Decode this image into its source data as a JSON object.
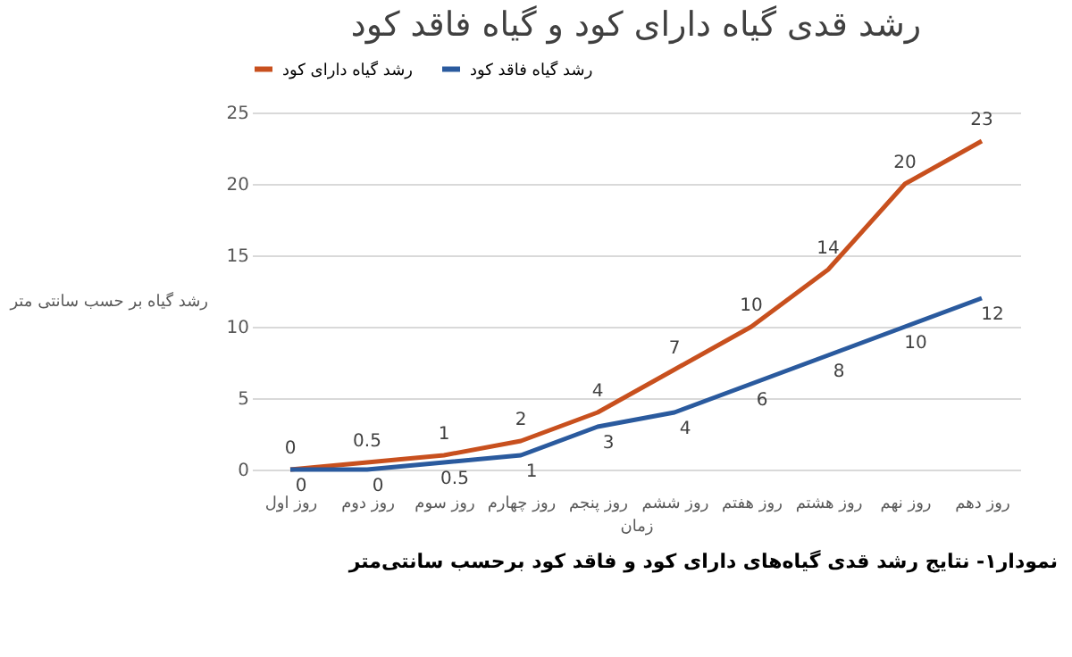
{
  "chart_data": {
    "type": "line",
    "title": "رشد قدی گیاه دارای کود و گیاه فاقد کود",
    "xlabel": "زمان",
    "ylabel": "رشد گیاه بر حسب سانتی متر",
    "categories": [
      "روز اول",
      "روز دوم",
      "روز سوم",
      "روز چهارم",
      "روز پنجم",
      "روز ششم",
      "روز هفتم",
      "روز هشتم",
      "روز نهم",
      "روز دهم"
    ],
    "series": [
      {
        "name": "رشد گیاه دارای کود",
        "color": "#c8501e",
        "values": [
          0,
          0.5,
          1,
          2,
          4,
          7,
          10,
          14,
          20,
          23
        ]
      },
      {
        "name": "رشد گیاه فاقد کود",
        "color": "#2a5a9e",
        "values": [
          0,
          0,
          0.5,
          1,
          3,
          4,
          6,
          8,
          10,
          12
        ]
      }
    ],
    "ylim": [
      0,
      25
    ],
    "yticks": [
      0,
      5,
      10,
      15,
      20,
      25
    ],
    "grid": "y",
    "legend": "top",
    "data_labels": true,
    "marker": "none",
    "line_style": "solid",
    "annotations": [
      "نمودار۱- نتایج رشد قدی گیاه‌های دارای کود و فاقد کود برحسب سانتی‌متر"
    ]
  }
}
